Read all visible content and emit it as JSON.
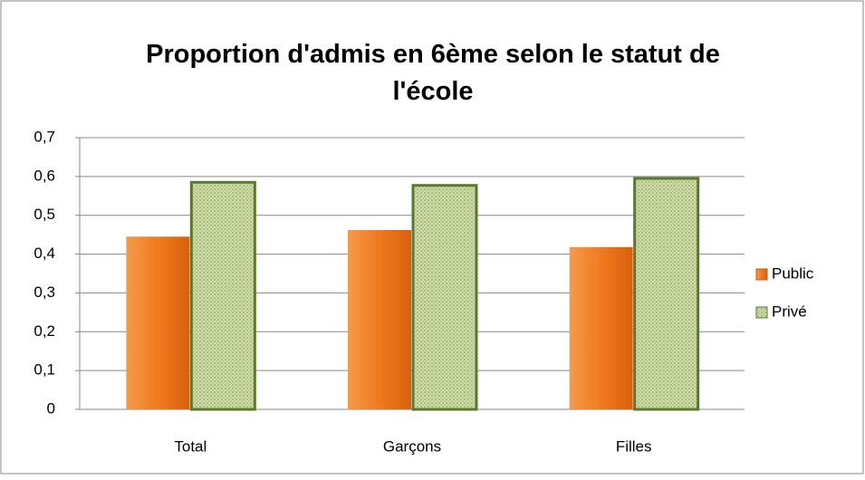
{
  "chart_data": {
    "type": "bar",
    "title": "Proportion d'admis en 6ème selon le statut de l'école",
    "categories": [
      "Total",
      "Garçons",
      "Filles"
    ],
    "series": [
      {
        "name": "Public",
        "color": "#f07a1e",
        "values": [
          0.445,
          0.462,
          0.418
        ]
      },
      {
        "name": "Privé",
        "color": "#c5d49b",
        "values": [
          0.585,
          0.577,
          0.595
        ]
      }
    ],
    "ylim": [
      0,
      0.7
    ],
    "yticks": [
      0,
      {
        "value": 0.1,
        "label": "0,1"
      },
      {
        "value": 0.2,
        "label": "0,2"
      },
      {
        "value": 0.3,
        "label": "0,3"
      },
      {
        "value": 0.4,
        "label": "0,4"
      },
      {
        "value": 0.5,
        "label": "0,5"
      },
      {
        "value": 0.6,
        "label": "0,6"
      },
      {
        "value": 0.7,
        "label": "0,7"
      }
    ],
    "grid": true,
    "legend": "right"
  }
}
